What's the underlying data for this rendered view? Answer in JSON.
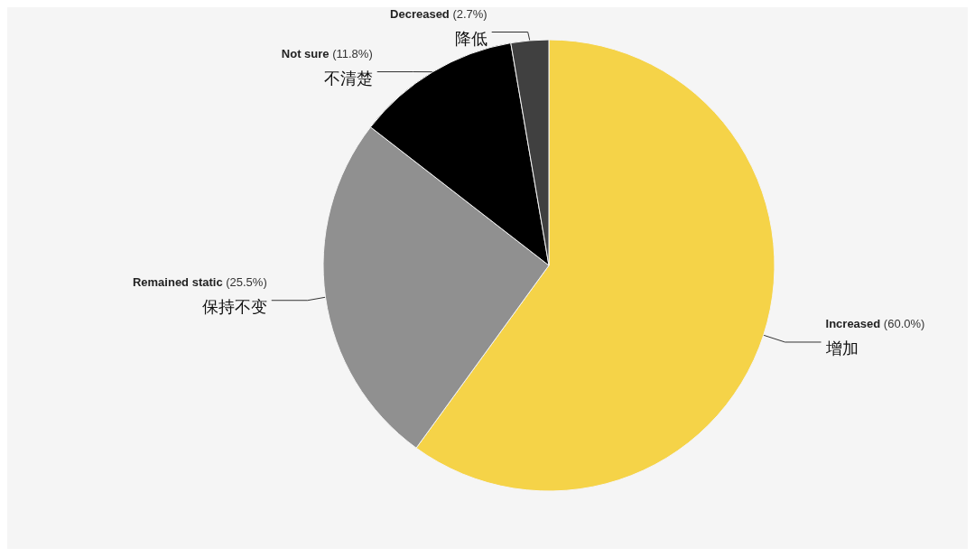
{
  "chart_data": {
    "type": "pie",
    "categories": [
      "Increased",
      "Remained static",
      "Not sure",
      "Decreased"
    ],
    "values": [
      60.0,
      25.5,
      11.8,
      2.7
    ],
    "colors": [
      "#f5d348",
      "#909090",
      "#000000",
      "#404040"
    ],
    "value_labels": [
      "(60.0%)",
      "(25.5%)",
      "(11.8%)",
      "(2.7%)"
    ],
    "annotations": [
      "增加",
      "保持不变",
      "不清楚",
      "降低"
    ],
    "legend": false
  }
}
